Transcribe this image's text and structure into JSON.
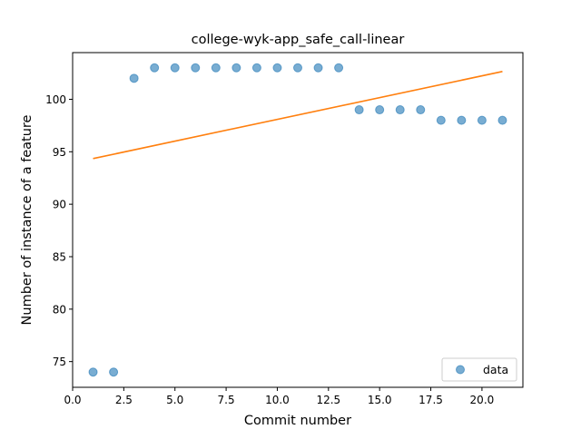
{
  "chart_data": {
    "type": "scatter",
    "title": "college-wyk-app_safe_call-linear",
    "xlabel": "Commit number",
    "ylabel": "Number of instance of a feature",
    "xlim": [
      0.0,
      22.0
    ],
    "ylim": [
      72.55,
      104.45
    ],
    "x_ticks": [
      0.0,
      2.5,
      5.0,
      7.5,
      10.0,
      12.5,
      15.0,
      17.5,
      20.0
    ],
    "x_tick_labels": [
      "0.0",
      "2.5",
      "5.0",
      "7.5",
      "10.0",
      "12.5",
      "15.0",
      "17.5",
      "20.0"
    ],
    "y_ticks": [
      75,
      80,
      85,
      90,
      95,
      100
    ],
    "y_tick_labels": [
      "75",
      "80",
      "85",
      "90",
      "95",
      "100"
    ],
    "series": [
      {
        "name": "data",
        "kind": "scatter",
        "color": "#1f77b4",
        "x": [
          1,
          2,
          3,
          4,
          5,
          6,
          7,
          8,
          9,
          10,
          11,
          12,
          13,
          14,
          15,
          16,
          17,
          18,
          19,
          20,
          21
        ],
        "y": [
          74,
          74,
          102,
          103,
          103,
          103,
          103,
          103,
          103,
          103,
          103,
          103,
          103,
          99,
          99,
          99,
          99,
          98,
          98,
          98,
          98
        ]
      },
      {
        "kind": "line",
        "color": "#ff7f0e",
        "x": [
          1,
          21
        ],
        "y": [
          94.35,
          102.65
        ]
      }
    ],
    "legend": {
      "placement": "lower-right",
      "entries": [
        "data"
      ]
    },
    "grid": false
  }
}
